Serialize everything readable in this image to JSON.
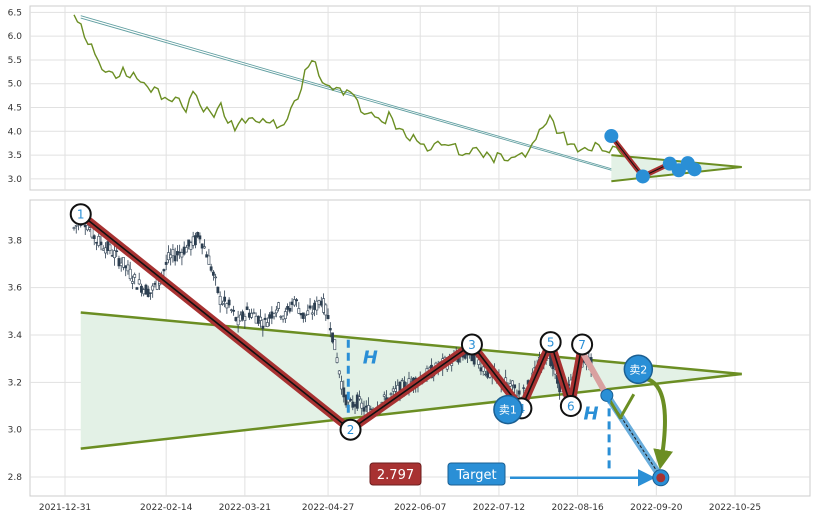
{
  "chart_data": [
    {
      "type": "line",
      "panel": "overview",
      "ylim": [
        2.85,
        6.55
      ],
      "y_ticks": [
        "3.0",
        "3.5",
        "4.0",
        "4.5",
        "5.0",
        "5.5",
        "6.0",
        "6.5"
      ],
      "grid": true,
      "line_color": "#6b8e23",
      "series": [
        {
          "values": [
            6.4,
            6.2,
            5.9,
            5.6,
            5.4,
            5.2,
            5.1,
            5.3,
            5.1,
            5.2,
            5.0,
            4.9,
            4.8,
            4.7,
            4.6,
            4.7,
            4.5,
            4.8,
            4.6,
            4.4,
            4.3,
            4.6,
            4.2,
            4.1,
            4.2,
            4.3,
            4.1,
            4.3,
            4.2,
            4.1,
            4.2,
            4.4,
            4.7,
            5.2,
            5.55,
            5.2,
            5.0,
            4.9,
            4.8,
            4.9,
            4.7,
            4.5,
            4.4,
            4.3,
            4.2,
            4.3,
            4.1,
            4.0,
            3.9,
            3.8,
            3.7,
            3.6,
            3.7,
            3.8,
            3.7,
            3.6,
            3.5,
            3.6,
            3.55,
            3.5,
            3.45,
            3.5,
            3.45,
            3.4,
            3.5,
            3.6,
            3.8,
            4.2,
            4.3,
            4.0,
            3.9,
            3.7,
            3.6,
            3.65,
            3.7,
            3.65,
            3.6,
            3.6,
            3.55,
            3.5,
            3.4
          ]
        }
      ],
      "lines": [
        {
          "from": [
            "2022-01-07",
            6.43
          ],
          "to": [
            "2022-09-12",
            3.05
          ],
          "color": "#5f9ea0"
        },
        {
          "from": [
            "2022-01-07",
            6.38
          ],
          "to": [
            "2022-09-12",
            3.02
          ],
          "color": "#5f9ea0"
        }
      ],
      "pattern": {
        "marks": [
          {
            "x": "2022-08-31",
            "y": 3.9
          },
          {
            "x": "2022-09-14",
            "y": 3.05
          },
          {
            "x": "2022-09-26",
            "y": 3.32
          },
          {
            "x": "2022-09-30",
            "y": 3.18
          },
          {
            "x": "2022-10-04",
            "y": 3.33
          },
          {
            "x": "2022-10-07",
            "y": 3.2
          }
        ]
      }
    },
    {
      "type": "candlestick",
      "panel": "main",
      "ylim": [
        2.72,
        3.97
      ],
      "y_ticks": [
        "2.8",
        "3.0",
        "3.2",
        "3.4",
        "3.6",
        "3.8"
      ],
      "x_ticks": [
        "2021-12-31",
        "2022-02-14",
        "2022-03-21",
        "2022-04-27",
        "2022-06-07",
        "2022-07-12",
        "2022-08-16",
        "2022-09-20",
        "2022-10-25"
      ],
      "grid": true,
      "price_path": [
        [
          "2022-01-04",
          3.85
        ],
        [
          "2022-01-08",
          3.9
        ],
        [
          "2022-01-14",
          3.8
        ],
        [
          "2022-01-20",
          3.76
        ],
        [
          "2022-01-26",
          3.7
        ],
        [
          "2022-02-01",
          3.62
        ],
        [
          "2022-02-07",
          3.58
        ],
        [
          "2022-02-11",
          3.63
        ],
        [
          "2022-02-15",
          3.72
        ],
        [
          "2022-02-20",
          3.75
        ],
        [
          "2022-02-25",
          3.78
        ],
        [
          "2022-03-01",
          3.82
        ],
        [
          "2022-03-05",
          3.72
        ],
        [
          "2022-03-10",
          3.55
        ],
        [
          "2022-03-14",
          3.52
        ],
        [
          "2022-03-18",
          3.45
        ],
        [
          "2022-03-22",
          3.5
        ],
        [
          "2022-03-26",
          3.48
        ],
        [
          "2022-03-30",
          3.45
        ],
        [
          "2022-04-04",
          3.52
        ],
        [
          "2022-04-08",
          3.48
        ],
        [
          "2022-04-12",
          3.55
        ],
        [
          "2022-04-16",
          3.48
        ],
        [
          "2022-04-20",
          3.5
        ],
        [
          "2022-04-24",
          3.55
        ],
        [
          "2022-04-28",
          3.45
        ],
        [
          "2022-05-01",
          3.3
        ],
        [
          "2022-05-04",
          3.15
        ],
        [
          "2022-05-07",
          3.1
        ],
        [
          "2022-05-10",
          3.12
        ],
        [
          "2022-05-14",
          3.08
        ],
        [
          "2022-05-18",
          3.1
        ],
        [
          "2022-05-22",
          3.12
        ],
        [
          "2022-05-26",
          3.15
        ],
        [
          "2022-05-30",
          3.18
        ],
        [
          "2022-06-03",
          3.2
        ],
        [
          "2022-06-08",
          3.22
        ],
        [
          "2022-06-13",
          3.25
        ],
        [
          "2022-06-18",
          3.28
        ],
        [
          "2022-06-23",
          3.3
        ],
        [
          "2022-06-28",
          3.32
        ],
        [
          "2022-07-02",
          3.3
        ],
        [
          "2022-07-06",
          3.25
        ],
        [
          "2022-07-10",
          3.22
        ],
        [
          "2022-07-14",
          3.2
        ],
        [
          "2022-07-18",
          3.18
        ],
        [
          "2022-07-22",
          3.14
        ],
        [
          "2022-07-26",
          3.2
        ],
        [
          "2022-07-30",
          3.28
        ],
        [
          "2022-08-03",
          3.33
        ],
        [
          "2022-08-07",
          3.2
        ],
        [
          "2022-08-11",
          3.15
        ],
        [
          "2022-08-15",
          3.24
        ],
        [
          "2022-08-19",
          3.3
        ],
        [
          "2022-08-23",
          3.27
        ]
      ],
      "candle_colors": {
        "up": "#ffffff",
        "down": "#2c3e50",
        "wick": "#2c3e50"
      },
      "triangle": {
        "apex": [
          "2022-10-28",
          3.235
        ],
        "upper_start": [
          "2022-01-07",
          3.495
        ],
        "lower_start": [
          "2022-01-07",
          2.92
        ],
        "fill": "#e3f1e6",
        "line_color": "#6b8e23"
      },
      "pivots": [
        {
          "label": "1",
          "x": "2022-01-07",
          "y": 3.91
        },
        {
          "label": "2",
          "x": "2022-05-07",
          "y": 3.0
        },
        {
          "label": "3",
          "x": "2022-06-30",
          "y": 3.36
        },
        {
          "label": "4",
          "x": "2022-07-22",
          "y": 3.09
        },
        {
          "label": "5",
          "x": "2022-08-04",
          "y": 3.37
        },
        {
          "label": "6",
          "x": "2022-08-13",
          "y": 3.1
        },
        {
          "label": "7",
          "x": "2022-08-18",
          "y": 3.36
        }
      ],
      "zigzag_color": "#a83232",
      "sell_signals": [
        {
          "label": "卖1",
          "x": "2022-07-16",
          "y": 3.085
        },
        {
          "label": "卖2",
          "x": "2022-09-12",
          "y": 3.255
        }
      ],
      "projection": {
        "breakout": [
          "2022-08-29",
          3.145
        ],
        "path": [
          [
            "2022-08-18",
            3.33
          ],
          [
            "2022-08-29",
            3.145
          ],
          [
            "2022-09-04",
            3.05
          ],
          [
            "2022-09-10",
            3.15
          ],
          [
            "2022-09-22",
            2.8
          ]
        ],
        "target": [
          "2022-09-22",
          2.797
        ],
        "color": "#6b8e23",
        "channel_color": "#4f9fd6"
      },
      "height_marks": [
        {
          "label": "H",
          "x": "2022-05-06",
          "from": 3.38,
          "to": 3.06
        },
        {
          "label": "H",
          "x": "2022-08-30",
          "from": 3.145,
          "to": 2.83
        }
      ],
      "target_label": "Target",
      "target_value": "2.797",
      "colors": {
        "accent": "#2a8fd6",
        "target_box": "#a83232",
        "badge_blue": "#2a8fd6",
        "text_blue": "#2a8fd6"
      }
    }
  ]
}
